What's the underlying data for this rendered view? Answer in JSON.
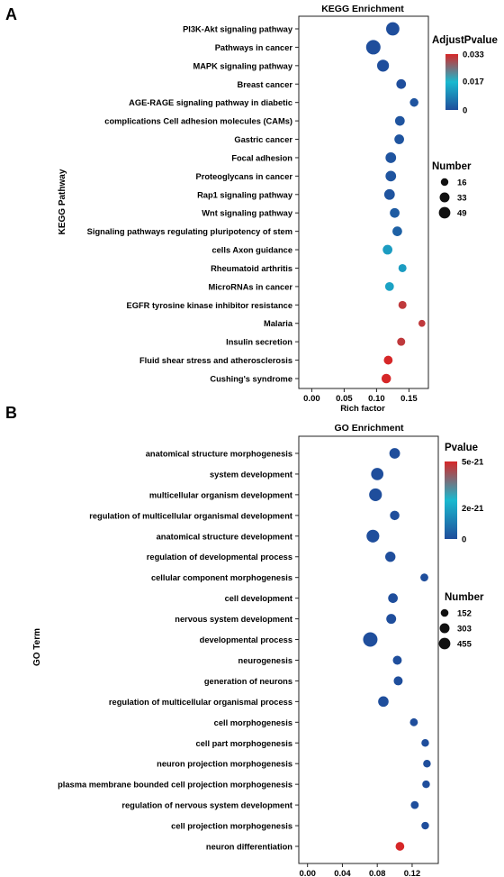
{
  "chart_data": [
    {
      "panel": "A",
      "type": "scatter",
      "title": "KEGG Enrichment",
      "xlabel": "Rich factor",
      "ylabel": "KEGG Pathway",
      "xlim": [
        -0.02,
        0.18
      ],
      "xticks": [
        "0.00",
        "0.05",
        "0.10",
        "0.15"
      ],
      "xtick_values": [
        0,
        0.05,
        0.1,
        0.15
      ],
      "categories": [
        "PI3K-Akt signaling pathway",
        "Pathways in cancer",
        "MAPK signaling pathway",
        "Breast cancer",
        "AGE-RAGE signaling pathway in diabetic",
        "complications Cell adhesion molecules (CAMs)",
        "Gastric cancer",
        "Focal adhesion",
        "Proteoglycans in cancer",
        "Rap1 signaling pathway",
        "Wnt signaling pathway",
        "Signaling pathways regulating pluripotency of stem",
        "cells Axon guidance",
        "Rheumatoid arthritis",
        "MicroRNAs in cancer",
        "EGFR tyrosine kinase inhibitor resistance",
        "Malaria",
        "Insulin secretion",
        "Fluid shear stress and atherosclerosis",
        "Cushing's syndrome"
      ],
      "x": [
        0.125,
        0.095,
        0.11,
        0.138,
        0.158,
        0.136,
        0.135,
        0.122,
        0.122,
        0.12,
        0.128,
        0.132,
        0.117,
        0.14,
        0.12,
        0.14,
        0.17,
        0.138,
        0.118,
        0.115
      ],
      "size": [
        40,
        49,
        30,
        17,
        12,
        17,
        17,
        22,
        22,
        22,
        17,
        17,
        17,
        10,
        13,
        10,
        6,
        10,
        13,
        16
      ],
      "color_value": [
        0,
        0,
        0,
        0,
        0.001,
        0.001,
        0.001,
        0.001,
        0.001,
        0.001,
        0.002,
        0.003,
        0.012,
        0.012,
        0.013,
        0.031,
        0.031,
        0.031,
        0.033,
        0.033
      ],
      "color_legend": {
        "title": "AdjustPvalue",
        "labels": [
          "0.033",
          "0.017",
          "0"
        ],
        "values": [
          0.033,
          0.017,
          0
        ]
      },
      "size_legend": {
        "title": "Number",
        "labels": [
          "16",
          "33",
          "49"
        ],
        "values": [
          16,
          33,
          49
        ]
      },
      "colors": {
        "low": "#1f4e9c",
        "mid": "#1ab9cf",
        "high": "#d62728"
      }
    },
    {
      "panel": "B",
      "type": "scatter",
      "title": "GO Enrichment",
      "xlabel": "",
      "ylabel": "GO Term",
      "xlim": [
        -0.01,
        0.15
      ],
      "xticks": [
        "0.00",
        "0.04",
        "0.08",
        "0.12"
      ],
      "xtick_values": [
        0,
        0.04,
        0.08,
        0.12
      ],
      "categories": [
        "anatomical structure morphogenesis",
        "system development",
        "multicellular organism development",
        "regulation of multicellular organismal development",
        "anatomical structure development",
        "regulation of developmental process",
        "cellular component morphogenesis",
        "cell development",
        "nervous system development",
        "developmental process",
        "neurogenesis",
        "generation of neurons",
        "regulation of multicellular organismal process",
        "cell morphogenesis",
        "cell part morphogenesis",
        "neuron projection morphogenesis",
        "plasma membrane bounded cell projection morphogenesis",
        "regulation of nervous system development",
        "cell projection morphogenesis",
        "neuron differentiation"
      ],
      "x": [
        0.1,
        0.08,
        0.078,
        0.1,
        0.075,
        0.095,
        0.134,
        0.098,
        0.096,
        0.072,
        0.103,
        0.104,
        0.087,
        0.122,
        0.135,
        0.137,
        0.136,
        0.123,
        0.135,
        0.106
      ],
      "size": [
        200,
        300,
        330,
        140,
        330,
        180,
        80,
        150,
        160,
        455,
        120,
        120,
        190,
        80,
        70,
        70,
        70,
        80,
        70,
        110
      ],
      "color_value": [
        0,
        0,
        0,
        0,
        0,
        0,
        0,
        0,
        0,
        0,
        0,
        0,
        0,
        0,
        0,
        0,
        0,
        0,
        0,
        5e-21
      ],
      "color_legend": {
        "title": "Pvalue",
        "labels": [
          "5e-21",
          "2e-21",
          "0"
        ],
        "values": [
          5e-21,
          2e-21,
          0
        ]
      },
      "size_legend": {
        "title": "Number",
        "labels": [
          "152",
          "303",
          "455"
        ],
        "values": [
          152,
          303,
          455
        ]
      },
      "colors": {
        "low": "#1f4e9c",
        "mid": "#1ab9cf",
        "high": "#d62728"
      }
    }
  ],
  "panel_labels": [
    "A",
    "B"
  ]
}
